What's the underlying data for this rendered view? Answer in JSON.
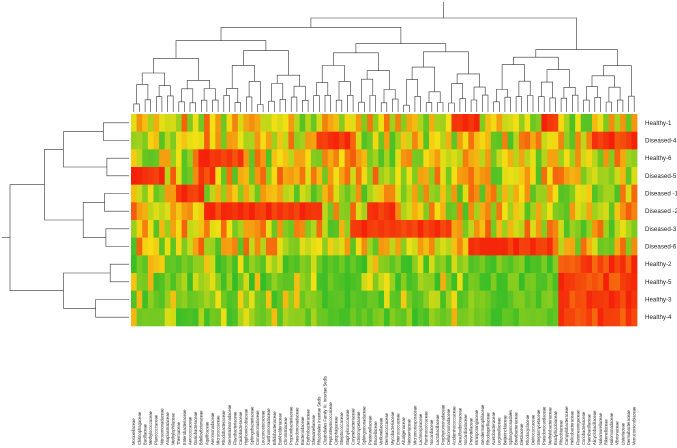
{
  "chart_data": {
    "type": "heatmap",
    "title": "",
    "xlabel": "",
    "ylabel": "",
    "rows": [
      "Healthy-1",
      "Diseased-4",
      "Healthy-6",
      "Diseased-5",
      "Diseased -1",
      "Diseased -2",
      "Diseased-3",
      "Diseased-6",
      "Healthy-2",
      "Healthy-5",
      "Healthy-3",
      "Healthy-4"
    ],
    "columns": [
      "Moraxellaceae",
      "Chitinophagaceae",
      "Bacillaceae",
      "Methylococcaceae",
      "Planococcaceae",
      "Nitrosomonadaceae",
      "Anaplasmataceae",
      "Methylophilaceae",
      "Thermaceae",
      "Enterobacteriaceae",
      "Aerococcaceae",
      "Oxalobacteraceae",
      "Bdellovibrionaceae",
      "Aquificaceae",
      "Aeromonadaceae",
      "Micrococcaceae",
      "Rhodobacteraceae",
      "Gemmatimonadaceae",
      "Flavobacteriaceae",
      "Caulobacteraceae",
      "Hyphomicrobiaceae",
      "Sphingobacteriaceae",
      "Comamonadaceae",
      "Leuconostocaceae",
      "Xanthomonadaceae",
      "Bifidobacteriaceae",
      "Burkholderiaceae",
      "Chromatiaceae",
      "Propionibacteriaceae",
      "Pseudomonadaceae",
      "Bacteroidaceae",
      "Erythrobacteraceae",
      "Shewanellaceae",
      "Rhizobiales Incertae Sedis",
      "Clostridiales Family XI. Incertae Sedis",
      "Peptostreptococcaceae",
      "Cytophagaceae",
      "Streptococcaceae",
      "Staphylococcaceae",
      "Corynebacteriaceae",
      "Actinomycetaceae",
      "Sphingomonadaceae",
      "Pasteurellaceae",
      "Brucellaceae",
      "Veillonellaceae",
      "Dermacoccaceae",
      "Mycobacteriaceae",
      "Enterococcaceae",
      "Alcaligenaceae",
      "Neisseriaceae",
      "Micromonosporaceae",
      "Lachnospiraceae",
      "Ruminococcaceae",
      "Nocardiaceae",
      "Lactobacillaceae",
      "Porphyromonadaceae",
      "Cellulomonadaceae",
      "Acidaminococcaceae",
      "Desulfovibrionaceae",
      "Nocardioidaceae",
      "Prevotellaceae",
      "Intrasporangiaceae",
      "Geodermatophilaceae",
      "Rhodospirillaceae",
      "Acetobacteraceae",
      "Legionellaceae",
      "Beijerinckiaceae",
      "Sphingomonadales",
      "Brevibacteriaceae",
      "Dietziaceae",
      "Rhodocyclaceae",
      "Deinococcaceae",
      "Streptomycetaceae",
      "Pseudonocardiaceae",
      "Methylobacteriaceae",
      "Bradyrhizobiaceae",
      "Rhizobiaceae",
      "Campylobacteraceae",
      "Helicobacteraceae",
      "Flammeovirgaceae",
      "Coriobacteriaceae",
      "Paenibacillaceae",
      "Alicyclobacillaceae",
      "Nakamurellaceae",
      "Rikenellaceae",
      "Halomonadaceae",
      "Vibrionaceae",
      "Listeriaceae",
      "Dermabacteraceae",
      "Verrucomicrobiaceae"
    ],
    "colorscale": [
      "#1fb92a",
      "#f4e013",
      "#f51e0a"
    ],
    "row_dendrogram": true,
    "column_dendrogram": true
  }
}
